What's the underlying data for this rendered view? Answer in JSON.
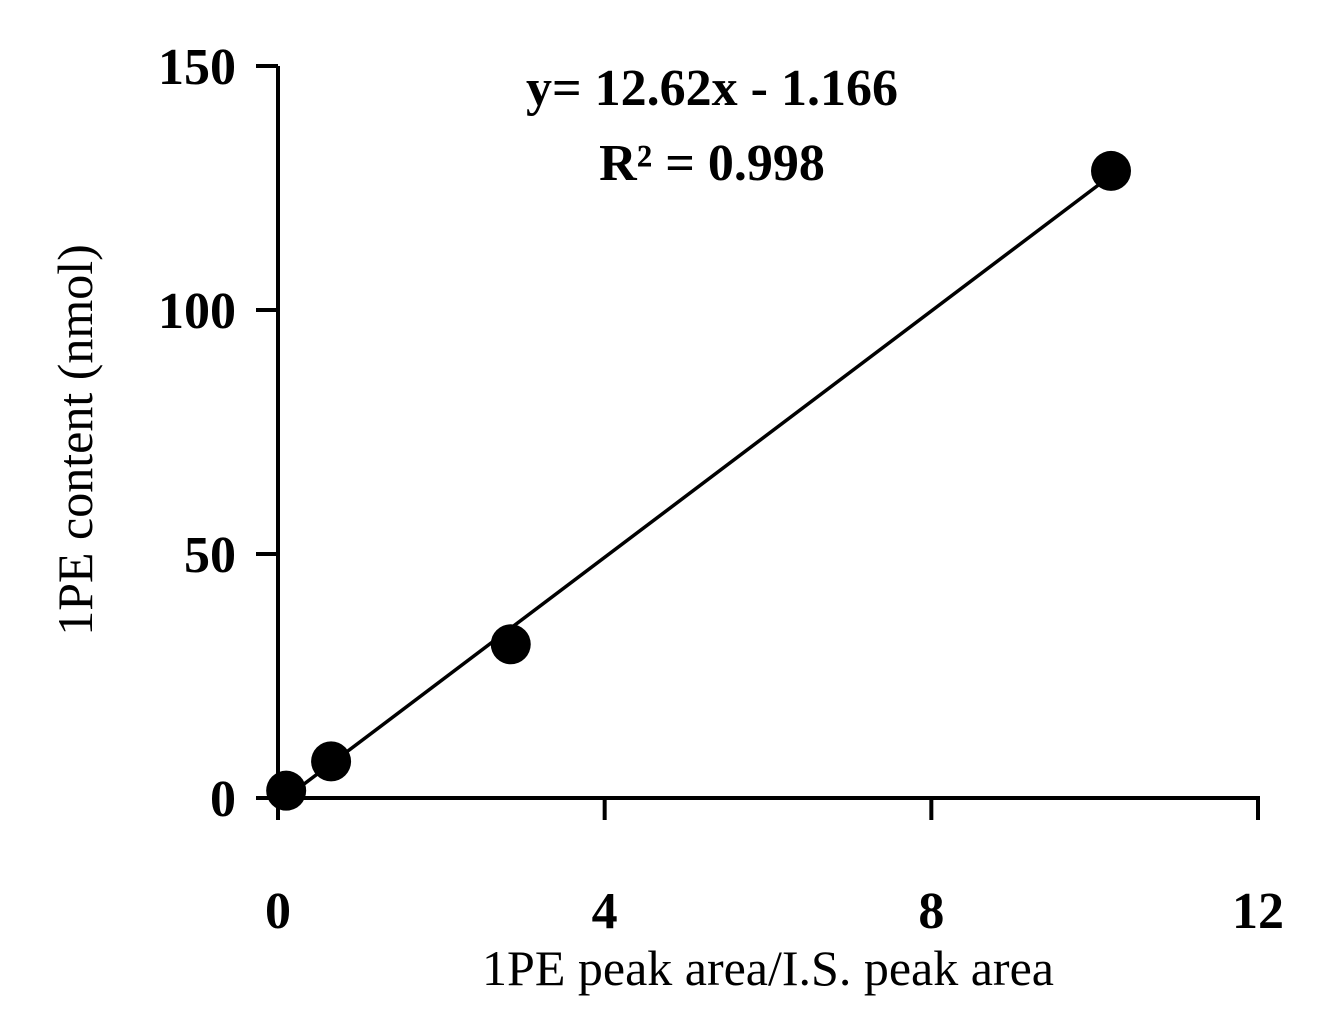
{
  "chart_data": {
    "type": "scatter",
    "xlabel": "1PE peak area/I.S. peak area",
    "ylabel": "1PE content (nmol)",
    "xlim": [
      0,
      12
    ],
    "ylim": [
      0,
      150
    ],
    "x_ticks": [
      0,
      4,
      8,
      12
    ],
    "y_ticks": [
      0,
      50,
      100,
      150
    ],
    "x_tick_labels": [
      "0",
      "4",
      "8",
      "12"
    ],
    "y_tick_labels": [
      "0",
      "50",
      "100",
      "150"
    ],
    "grid": false,
    "series": [
      {
        "x": [
          0.1,
          0.65,
          2.85,
          10.2
        ],
        "y": [
          1.5,
          7.5,
          31.5,
          128.5
        ],
        "marker_color": "#000000"
      }
    ],
    "trendline": {
      "slope": 12.62,
      "intercept": -1.166,
      "x_range": [
        0.1,
        10.2
      ],
      "color": "#000000"
    },
    "annotations": [
      "y= 12.62x - 1.166",
      "R² = 0.998"
    ]
  }
}
